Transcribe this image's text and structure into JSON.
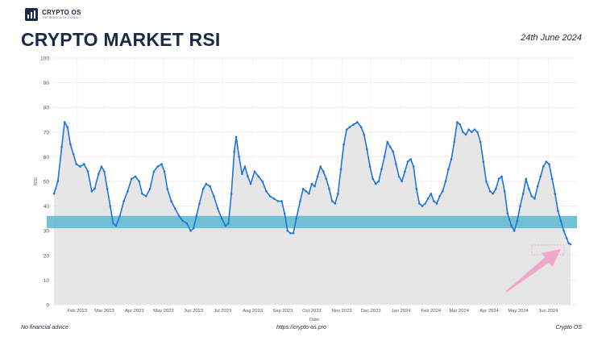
{
  "brand": {
    "name": "CRYPTO OS",
    "tagline": "THE SEARCH OF SIGNAL"
  },
  "header": {
    "title": "CRYPTO MARKET RSI",
    "date": "24th June 2024"
  },
  "footer": {
    "left": "No financial advice",
    "center": "https://crypto-os.pro",
    "right": "Crypto OS"
  },
  "colors": {
    "line": "#1f74d8",
    "fill": "#e2e2e2",
    "band": "#5ab7cf",
    "arrow": "#f2a0c8",
    "title": "#1a2a44"
  },
  "chart_data": {
    "type": "line",
    "title": "CRYPTO MARKET RSI",
    "xlabel": "Date",
    "ylabel": "RSI",
    "ylim": [
      0,
      100
    ],
    "yticks": [
      0,
      10,
      20,
      30,
      40,
      50,
      60,
      70,
      80,
      90,
      100
    ],
    "xticks": [
      "Feb 2023",
      "Mar 2023",
      "Apr 2023",
      "May 2023",
      "Jun 2023",
      "Jul 2023",
      "Aug 2023",
      "Sep 2023",
      "Oct 2023",
      "Nov 2023",
      "Dec 2023",
      "Jan 2024",
      "Feb 2024",
      "Mar 2024",
      "Apr 2024",
      "May 2024",
      "Jun 2024"
    ],
    "grid": true,
    "band": {
      "from": 31,
      "to": 36
    },
    "annotation": "arrow pointing to latest value",
    "series": [
      {
        "points": [
          [
            "2023-01-08",
            45
          ],
          [
            "2023-01-12",
            50
          ],
          [
            "2023-01-16",
            64
          ],
          [
            "2023-01-19",
            74
          ],
          [
            "2023-01-22",
            72
          ],
          [
            "2023-01-25",
            65
          ],
          [
            "2023-01-28",
            61
          ],
          [
            "2023-01-31",
            57
          ],
          [
            "2023-02-04",
            56
          ],
          [
            "2023-02-08",
            57
          ],
          [
            "2023-02-12",
            54
          ],
          [
            "2023-02-16",
            46
          ],
          [
            "2023-02-19",
            47
          ],
          [
            "2023-02-23",
            53
          ],
          [
            "2023-02-26",
            56
          ],
          [
            "2023-03-01",
            54
          ],
          [
            "2023-03-04",
            47
          ],
          [
            "2023-03-07",
            40
          ],
          [
            "2023-03-10",
            33
          ],
          [
            "2023-03-13",
            32
          ],
          [
            "2023-03-17",
            36
          ],
          [
            "2023-03-21",
            42
          ],
          [
            "2023-03-25",
            46
          ],
          [
            "2023-03-29",
            51
          ],
          [
            "2023-04-02",
            52
          ],
          [
            "2023-04-06",
            50
          ],
          [
            "2023-04-09",
            45
          ],
          [
            "2023-04-13",
            44
          ],
          [
            "2023-04-17",
            47
          ],
          [
            "2023-04-21",
            54
          ],
          [
            "2023-04-25",
            56
          ],
          [
            "2023-04-29",
            57
          ],
          [
            "2023-05-02",
            54
          ],
          [
            "2023-05-05",
            47
          ],
          [
            "2023-05-09",
            42
          ],
          [
            "2023-05-13",
            39
          ],
          [
            "2023-05-17",
            36
          ],
          [
            "2023-05-21",
            34
          ],
          [
            "2023-05-25",
            33
          ],
          [
            "2023-05-29",
            30
          ],
          [
            "2023-06-01",
            31
          ],
          [
            "2023-06-04",
            36
          ],
          [
            "2023-06-07",
            41
          ],
          [
            "2023-06-11",
            47
          ],
          [
            "2023-06-14",
            49
          ],
          [
            "2023-06-18",
            48
          ],
          [
            "2023-06-22",
            44
          ],
          [
            "2023-06-26",
            39
          ],
          [
            "2023-06-30",
            35
          ],
          [
            "2023-07-04",
            32
          ],
          [
            "2023-07-07",
            33
          ],
          [
            "2023-07-10",
            45
          ],
          [
            "2023-07-13",
            62
          ],
          [
            "2023-07-15",
            68
          ],
          [
            "2023-07-18",
            60
          ],
          [
            "2023-07-21",
            53
          ],
          [
            "2023-07-24",
            56
          ],
          [
            "2023-07-27",
            52
          ],
          [
            "2023-07-30",
            49
          ],
          [
            "2023-08-03",
            54
          ],
          [
            "2023-08-07",
            52
          ],
          [
            "2023-08-11",
            50
          ],
          [
            "2023-08-15",
            46
          ],
          [
            "2023-08-19",
            44
          ],
          [
            "2023-08-23",
            43
          ],
          [
            "2023-08-27",
            42
          ],
          [
            "2023-08-31",
            42
          ],
          [
            "2023-09-03",
            37
          ],
          [
            "2023-09-06",
            30
          ],
          [
            "2023-09-09",
            29
          ],
          [
            "2023-09-12",
            29
          ],
          [
            "2023-09-15",
            35
          ],
          [
            "2023-09-19",
            42
          ],
          [
            "2023-09-22",
            47
          ],
          [
            "2023-09-25",
            46
          ],
          [
            "2023-09-28",
            45
          ],
          [
            "2023-10-01",
            49
          ],
          [
            "2023-10-04",
            48
          ],
          [
            "2023-10-07",
            52
          ],
          [
            "2023-10-10",
            56
          ],
          [
            "2023-10-13",
            54
          ],
          [
            "2023-10-16",
            51
          ],
          [
            "2023-10-19",
            47
          ],
          [
            "2023-10-22",
            42
          ],
          [
            "2023-10-25",
            41
          ],
          [
            "2023-10-28",
            45
          ],
          [
            "2023-10-31",
            55
          ],
          [
            "2023-11-03",
            65
          ],
          [
            "2023-11-06",
            71
          ],
          [
            "2023-11-09",
            72
          ],
          [
            "2023-11-13",
            73
          ],
          [
            "2023-11-17",
            74
          ],
          [
            "2023-11-21",
            72
          ],
          [
            "2023-11-24",
            69
          ],
          [
            "2023-11-27",
            63
          ],
          [
            "2023-11-30",
            56
          ],
          [
            "2023-12-03",
            51
          ],
          [
            "2023-12-06",
            49
          ],
          [
            "2023-12-09",
            50
          ],
          [
            "2023-12-12",
            55
          ],
          [
            "2023-12-15",
            60
          ],
          [
            "2023-12-18",
            66
          ],
          [
            "2023-12-21",
            64
          ],
          [
            "2023-12-24",
            62
          ],
          [
            "2023-12-27",
            57
          ],
          [
            "2023-12-30",
            52
          ],
          [
            "2024-01-02",
            50
          ],
          [
            "2024-01-05",
            54
          ],
          [
            "2024-01-08",
            58
          ],
          [
            "2024-01-11",
            59
          ],
          [
            "2024-01-14",
            56
          ],
          [
            "2024-01-17",
            47
          ],
          [
            "2024-01-20",
            41
          ],
          [
            "2024-01-23",
            40
          ],
          [
            "2024-01-26",
            41
          ],
          [
            "2024-01-29",
            43
          ],
          [
            "2024-02-01",
            45
          ],
          [
            "2024-02-04",
            42
          ],
          [
            "2024-02-07",
            41
          ],
          [
            "2024-02-10",
            44
          ],
          [
            "2024-02-13",
            46
          ],
          [
            "2024-02-16",
            50
          ],
          [
            "2024-02-19",
            55
          ],
          [
            "2024-02-22",
            59
          ],
          [
            "2024-02-25",
            66
          ],
          [
            "2024-02-28",
            74
          ],
          [
            "2024-03-02",
            73
          ],
          [
            "2024-03-05",
            70
          ],
          [
            "2024-03-08",
            69
          ],
          [
            "2024-03-11",
            71
          ],
          [
            "2024-03-14",
            70
          ],
          [
            "2024-03-17",
            71
          ],
          [
            "2024-03-20",
            70
          ],
          [
            "2024-03-23",
            66
          ],
          [
            "2024-03-26",
            58
          ],
          [
            "2024-03-29",
            50
          ],
          [
            "2024-04-02",
            46
          ],
          [
            "2024-04-05",
            45
          ],
          [
            "2024-04-08",
            47
          ],
          [
            "2024-04-11",
            51
          ],
          [
            "2024-04-14",
            52
          ],
          [
            "2024-04-17",
            46
          ],
          [
            "2024-04-20",
            37
          ],
          [
            "2024-04-24",
            32
          ],
          [
            "2024-04-27",
            30
          ],
          [
            "2024-04-30",
            34
          ],
          [
            "2024-05-03",
            40
          ],
          [
            "2024-05-06",
            45
          ],
          [
            "2024-05-09",
            51
          ],
          [
            "2024-05-12",
            47
          ],
          [
            "2024-05-15",
            44
          ],
          [
            "2024-05-18",
            43
          ],
          [
            "2024-05-21",
            48
          ],
          [
            "2024-05-24",
            52
          ],
          [
            "2024-05-27",
            56
          ],
          [
            "2024-05-30",
            58
          ],
          [
            "2024-06-02",
            57
          ],
          [
            "2024-06-05",
            51
          ],
          [
            "2024-06-08",
            45
          ],
          [
            "2024-06-11",
            38
          ],
          [
            "2024-06-14",
            34
          ],
          [
            "2024-06-17",
            30
          ],
          [
            "2024-06-20",
            27
          ],
          [
            "2024-06-22",
            25
          ],
          [
            "2024-06-24",
            24.5
          ]
        ]
      }
    ]
  }
}
